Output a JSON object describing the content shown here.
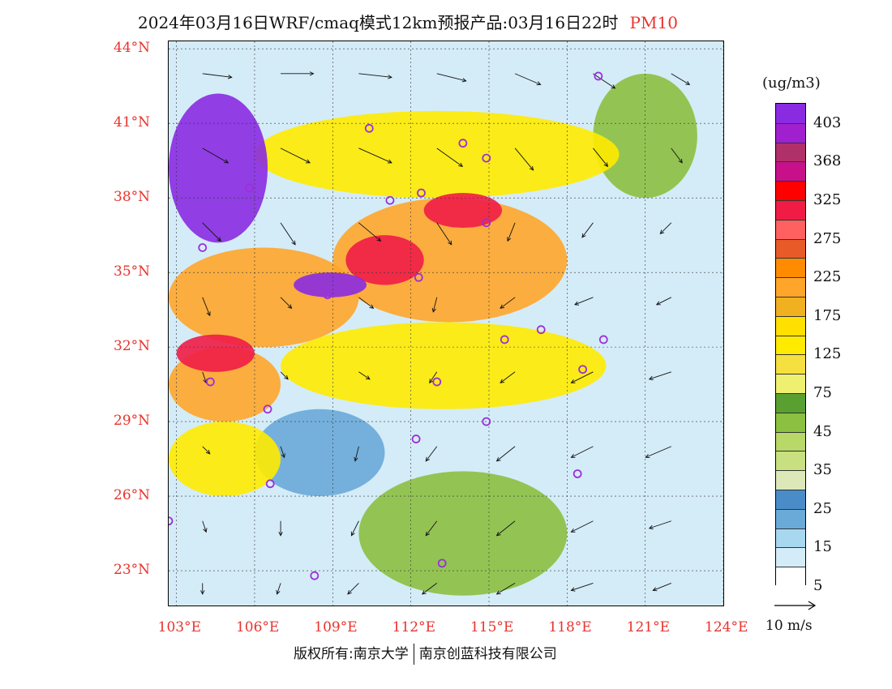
{
  "header": {
    "title": "2024年03月16日WRF/cmaq模式12km预报产品:03月16日22时",
    "pollutant": "PM10"
  },
  "lat_labels": [
    "44°N",
    "41°N",
    "38°N",
    "35°N",
    "32°N",
    "29°N",
    "26°N",
    "23°N"
  ],
  "lon_labels": [
    "103°E",
    "106°E",
    "109°E",
    "112°E",
    "115°E",
    "118°E",
    "121°E",
    "124°E"
  ],
  "legend": {
    "unit": "(ug/m3)",
    "labels": [
      "403",
      "368",
      "325",
      "275",
      "225",
      "175",
      "125",
      "75",
      "45",
      "35",
      "25",
      "15",
      "5"
    ],
    "colors": [
      "#8a2be2",
      "#a020d0",
      "#b0306a",
      "#c8108a",
      "#ff0000",
      "#f01c46",
      "#ff6060",
      "#e85a28",
      "#ff8c00",
      "#ffa62a",
      "#f0b020",
      "#ffe000",
      "#ffeb00",
      "#f5e040",
      "#f0f070",
      "#5aa030",
      "#8cc040",
      "#b8d868",
      "#c8e080",
      "#dde8b8",
      "#4a8cc8",
      "#6aaad8",
      "#a8d8f0",
      "#d4ecf8",
      "#ffffff"
    ]
  },
  "wind_reference": {
    "label": "10 m/s"
  },
  "footer": {
    "copyright_left": "版权所有:南京大学",
    "copyright_right": "南京创蓝科技有限公司"
  },
  "map": {
    "extent": {
      "lon": [
        102.7,
        124
      ],
      "lat": [
        21.6,
        44.3
      ]
    },
    "colors": {
      "background": "#d4ecf8",
      "sea": "#d4ecf8",
      "station_marker": "#9b30d9"
    },
    "stations": [
      {
        "lon": 119.2,
        "lat": 42.9
      },
      {
        "lon": 110.4,
        "lat": 40.8
      },
      {
        "lon": 114.0,
        "lat": 40.2
      },
      {
        "lon": 114.9,
        "lat": 39.6
      },
      {
        "lon": 105.8,
        "lat": 38.4
      },
      {
        "lon": 111.2,
        "lat": 37.9
      },
      {
        "lon": 112.4,
        "lat": 38.2
      },
      {
        "lon": 114.9,
        "lat": 37.0
      },
      {
        "lon": 104.0,
        "lat": 36.0
      },
      {
        "lon": 112.3,
        "lat": 34.8
      },
      {
        "lon": 108.8,
        "lat": 34.1
      },
      {
        "lon": 115.6,
        "lat": 32.3
      },
      {
        "lon": 117.0,
        "lat": 32.7
      },
      {
        "lon": 119.4,
        "lat": 32.3
      },
      {
        "lon": 118.6,
        "lat": 31.1
      },
      {
        "lon": 104.3,
        "lat": 30.6
      },
      {
        "lon": 113.0,
        "lat": 30.6
      },
      {
        "lon": 106.5,
        "lat": 29.5
      },
      {
        "lon": 114.9,
        "lat": 29.0
      },
      {
        "lon": 112.2,
        "lat": 28.3
      },
      {
        "lon": 106.6,
        "lat": 26.5
      },
      {
        "lon": 118.4,
        "lat": 26.9
      },
      {
        "lon": 102.7,
        "lat": 25.0
      },
      {
        "lon": 108.3,
        "lat": 22.8
      },
      {
        "lon": 113.2,
        "lat": 23.3
      }
    ],
    "pollution_regions": [
      {
        "level": "very-high",
        "lon": [
          102.7,
          106.5
        ],
        "lat": [
          36.2,
          42.2
        ]
      },
      {
        "level": "very-high",
        "lon": [
          107.5,
          110.3
        ],
        "lat": [
          34.0,
          35.0
        ]
      },
      {
        "level": "high",
        "lon": [
          109.5,
          112.5
        ],
        "lat": [
          34.5,
          36.5
        ]
      },
      {
        "level": "high",
        "lon": [
          112.5,
          115.5
        ],
        "lat": [
          36.8,
          38.2
        ]
      },
      {
        "level": "high",
        "lon": [
          103.0,
          106.0
        ],
        "lat": [
          31.0,
          32.5
        ]
      },
      {
        "level": "elevated",
        "lon": [
          102.7,
          110.0
        ],
        "lat": [
          32.0,
          36.0
        ]
      },
      {
        "level": "elevated",
        "lon": [
          109.0,
          118.0
        ],
        "lat": [
          33.0,
          38.0
        ]
      },
      {
        "level": "elevated",
        "lon": [
          102.7,
          107.0
        ],
        "lat": [
          29.0,
          32.0
        ]
      },
      {
        "level": "moderate",
        "lon": [
          107.0,
          119.5
        ],
        "lat": [
          29.5,
          33.0
        ]
      },
      {
        "level": "moderate",
        "lon": [
          106.0,
          120.0
        ],
        "lat": [
          38.0,
          41.5
        ]
      },
      {
        "level": "moderate",
        "lon": [
          102.7,
          107.0
        ],
        "lat": [
          26.0,
          29.0
        ]
      },
      {
        "level": "low",
        "lon": [
          110.0,
          118.0
        ],
        "lat": [
          22.0,
          27.0
        ]
      },
      {
        "level": "low",
        "lon": [
          119.0,
          123.0
        ],
        "lat": [
          38.0,
          43.0
        ]
      },
      {
        "level": "clean",
        "lon": [
          106.0,
          111.0
        ],
        "lat": [
          26.0,
          29.5
        ]
      }
    ],
    "level_colors": {
      "very-high": "#8a2be2",
      "high": "#f01c46",
      "elevated": "#ffa62a",
      "moderate": "#ffeb00",
      "low": "#8cc040",
      "clean": "#6aaad8"
    },
    "wind_vectors": [
      {
        "lon": 104,
        "lat": 43,
        "u": 8,
        "v": -1
      },
      {
        "lon": 107,
        "lat": 43,
        "u": 9,
        "v": 0
      },
      {
        "lon": 110,
        "lat": 43,
        "u": 9,
        "v": -1
      },
      {
        "lon": 113,
        "lat": 43,
        "u": 8,
        "v": -2
      },
      {
        "lon": 116,
        "lat": 43,
        "u": 7,
        "v": -3
      },
      {
        "lon": 119,
        "lat": 43,
        "u": 6,
        "v": -4
      },
      {
        "lon": 122,
        "lat": 43,
        "u": 5,
        "v": -3
      },
      {
        "lon": 104,
        "lat": 40,
        "u": 7,
        "v": -4
      },
      {
        "lon": 107,
        "lat": 40,
        "u": 8,
        "v": -4
      },
      {
        "lon": 110,
        "lat": 40,
        "u": 9,
        "v": -4
      },
      {
        "lon": 113,
        "lat": 40,
        "u": 7,
        "v": -5
      },
      {
        "lon": 116,
        "lat": 40,
        "u": 5,
        "v": -6
      },
      {
        "lon": 119,
        "lat": 40,
        "u": 4,
        "v": -5
      },
      {
        "lon": 122,
        "lat": 40,
        "u": 3,
        "v": -4
      },
      {
        "lon": 104,
        "lat": 37,
        "u": 5,
        "v": -5
      },
      {
        "lon": 107,
        "lat": 37,
        "u": 4,
        "v": -6
      },
      {
        "lon": 110,
        "lat": 37,
        "u": 6,
        "v": -5
      },
      {
        "lon": 113,
        "lat": 37,
        "u": 4,
        "v": -6
      },
      {
        "lon": 116,
        "lat": 37,
        "u": -2,
        "v": -5
      },
      {
        "lon": 119,
        "lat": 37,
        "u": -3,
        "v": -4
      },
      {
        "lon": 122,
        "lat": 37,
        "u": -3,
        "v": -3
      },
      {
        "lon": 104,
        "lat": 34,
        "u": 2,
        "v": -5
      },
      {
        "lon": 107,
        "lat": 34,
        "u": 3,
        "v": -3
      },
      {
        "lon": 110,
        "lat": 34,
        "u": 4,
        "v": -3
      },
      {
        "lon": 113,
        "lat": 34,
        "u": -1,
        "v": -4
      },
      {
        "lon": 116,
        "lat": 34,
        "u": -4,
        "v": -3
      },
      {
        "lon": 119,
        "lat": 34,
        "u": -5,
        "v": -2
      },
      {
        "lon": 122,
        "lat": 34,
        "u": -4,
        "v": -2
      },
      {
        "lon": 104,
        "lat": 31,
        "u": 1,
        "v": -3
      },
      {
        "lon": 107,
        "lat": 31,
        "u": 2,
        "v": -2
      },
      {
        "lon": 110,
        "lat": 31,
        "u": 3,
        "v": -2
      },
      {
        "lon": 113,
        "lat": 31,
        "u": -2,
        "v": -3
      },
      {
        "lon": 116,
        "lat": 31,
        "u": -4,
        "v": -3
      },
      {
        "lon": 119,
        "lat": 31,
        "u": -6,
        "v": -3
      },
      {
        "lon": 122,
        "lat": 31,
        "u": -6,
        "v": -2
      },
      {
        "lon": 104,
        "lat": 28,
        "u": 2,
        "v": -2
      },
      {
        "lon": 107,
        "lat": 28,
        "u": 1,
        "v": -3
      },
      {
        "lon": 110,
        "lat": 28,
        "u": -1,
        "v": -4
      },
      {
        "lon": 113,
        "lat": 28,
        "u": -3,
        "v": -4
      },
      {
        "lon": 116,
        "lat": 28,
        "u": -5,
        "v": -4
      },
      {
        "lon": 119,
        "lat": 28,
        "u": -6,
        "v": -3
      },
      {
        "lon": 122,
        "lat": 28,
        "u": -7,
        "v": -3
      },
      {
        "lon": 104,
        "lat": 25,
        "u": 1,
        "v": -3
      },
      {
        "lon": 107,
        "lat": 25,
        "u": 0,
        "v": -4
      },
      {
        "lon": 110,
        "lat": 25,
        "u": -2,
        "v": -4
      },
      {
        "lon": 113,
        "lat": 25,
        "u": -3,
        "v": -4
      },
      {
        "lon": 116,
        "lat": 25,
        "u": -5,
        "v": -4
      },
      {
        "lon": 119,
        "lat": 25,
        "u": -6,
        "v": -3
      },
      {
        "lon": 122,
        "lat": 25,
        "u": -6,
        "v": -2
      },
      {
        "lon": 104,
        "lat": 22.5,
        "u": 0,
        "v": -3
      },
      {
        "lon": 107,
        "lat": 22.5,
        "u": -1,
        "v": -3
      },
      {
        "lon": 110,
        "lat": 22.5,
        "u": -3,
        "v": -3
      },
      {
        "lon": 113,
        "lat": 22.5,
        "u": -4,
        "v": -3
      },
      {
        "lon": 116,
        "lat": 22.5,
        "u": -5,
        "v": -3
      },
      {
        "lon": 119,
        "lat": 22.5,
        "u": -6,
        "v": -2
      },
      {
        "lon": 122,
        "lat": 22.5,
        "u": -5,
        "v": -2
      }
    ]
  }
}
